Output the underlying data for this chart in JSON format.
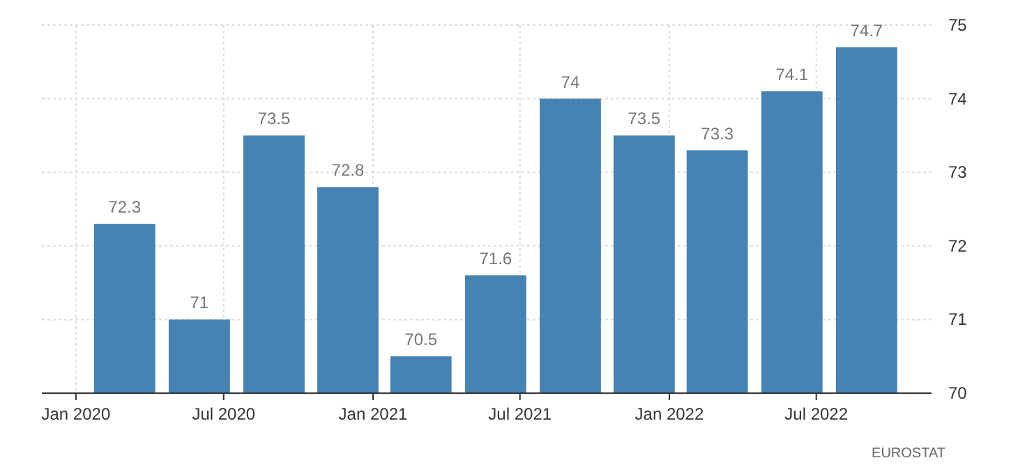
{
  "chart_data": {
    "type": "bar",
    "x": [
      "2020-03",
      "2020-06",
      "2020-09",
      "2020-12",
      "2021-03",
      "2021-06",
      "2021-09",
      "2021-12",
      "2022-03",
      "2022-06",
      "2022-09"
    ],
    "values": [
      72.3,
      71,
      73.5,
      72.8,
      70.5,
      71.6,
      74,
      73.5,
      73.3,
      74.1,
      74.7
    ],
    "color": "#4682b4",
    "data_labels": true,
    "xlim": [
      "2019-11-20",
      "2022-11-20"
    ],
    "xticks": [
      {
        "value": "2020-01",
        "label": "Jan 2020"
      },
      {
        "value": "2020-07",
        "label": "Jul 2020"
      },
      {
        "value": "2021-01",
        "label": "Jan 2021"
      },
      {
        "value": "2021-07",
        "label": "Jul 2021"
      },
      {
        "value": "2022-01",
        "label": "Jan 2022"
      },
      {
        "value": "2022-07",
        "label": "Jul 2022"
      }
    ],
    "ylim": [
      70,
      75
    ],
    "yticks": [
      70,
      71,
      72,
      73,
      74,
      75
    ],
    "grid": true,
    "annotations": [
      "EUROSTAT"
    ]
  }
}
